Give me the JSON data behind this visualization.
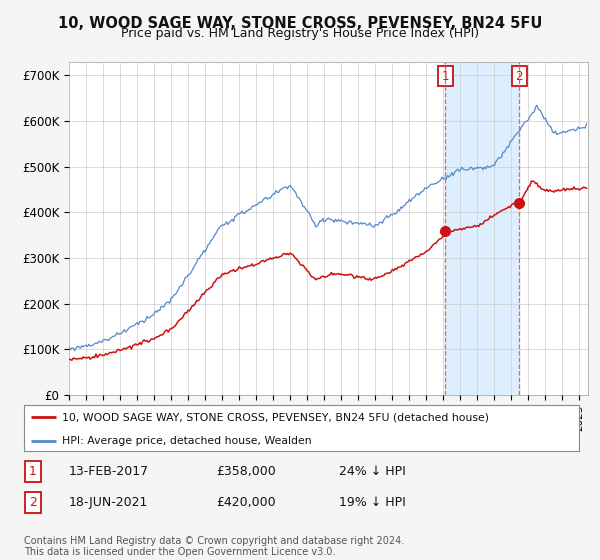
{
  "title": "10, WOOD SAGE WAY, STONE CROSS, PEVENSEY, BN24 5FU",
  "subtitle": "Price paid vs. HM Land Registry's House Price Index (HPI)",
  "ylabel_ticks": [
    "£0",
    "£100K",
    "£200K",
    "£300K",
    "£400K",
    "£500K",
    "£600K",
    "£700K"
  ],
  "ytick_vals": [
    0,
    100000,
    200000,
    300000,
    400000,
    500000,
    600000,
    700000
  ],
  "ylim": [
    0,
    730000
  ],
  "xlim_start": 1995.0,
  "xlim_end": 2025.5,
  "hpi_color": "#5588cc",
  "price_color": "#cc1111",
  "shade_color": "#ddeeff",
  "marker1_date": 2017.12,
  "marker1_price": 358000,
  "marker1_label": "1",
  "marker2_date": 2021.46,
  "marker2_price": 420000,
  "marker2_label": "2",
  "vline_color": "#dd6666",
  "legend_line1": "10, WOOD SAGE WAY, STONE CROSS, PEVENSEY, BN24 5FU (detached house)",
  "legend_line2": "HPI: Average price, detached house, Wealden",
  "table_row1": [
    "1",
    "13-FEB-2017",
    "£358,000",
    "24% ↓ HPI"
  ],
  "table_row2": [
    "2",
    "18-JUN-2021",
    "£420,000",
    "19% ↓ HPI"
  ],
  "footnote": "Contains HM Land Registry data © Crown copyright and database right 2024.\nThis data is licensed under the Open Government Licence v3.0.",
  "background_color": "#f5f5f5",
  "plot_bg_color": "#ffffff",
  "grid_color": "#cccccc"
}
